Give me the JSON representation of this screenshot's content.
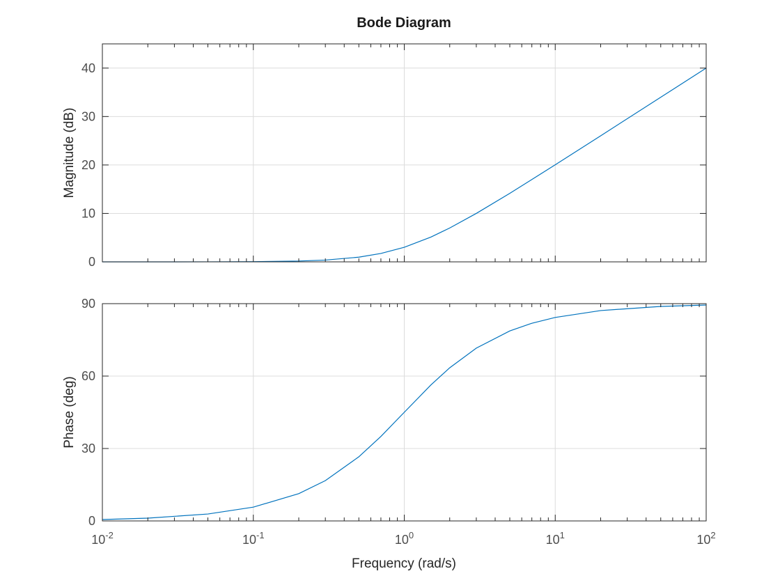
{
  "chart_data": {
    "type": "line",
    "title": "Bode Diagram",
    "xlabel": "Frequency (rad/s)",
    "xscale": "log",
    "xlim": [
      0.01,
      100
    ],
    "x_tick_labels": [
      {
        "base": "10",
        "exp": "-2"
      },
      {
        "base": "10",
        "exp": "-1"
      },
      {
        "base": "10",
        "exp": "0"
      },
      {
        "base": "10",
        "exp": "1"
      },
      {
        "base": "10",
        "exp": "2"
      }
    ],
    "grid": true,
    "line_color": "#0072BD",
    "subplots": [
      {
        "name": "magnitude",
        "ylabel": "Magnitude (dB)",
        "ylim": [
          0,
          45
        ],
        "yticks": [
          0,
          10,
          20,
          30,
          40
        ],
        "series": [
          {
            "x": [
              0.01,
              0.02,
              0.05,
              0.1,
              0.2,
              0.3,
              0.5,
              0.7,
              1,
              1.5,
              2,
              3,
              5,
              7,
              10,
              20,
              50,
              100
            ],
            "values": [
              0.0,
              0.0,
              0.01,
              0.04,
              0.17,
              0.37,
              0.97,
              1.73,
              3.01,
              5.12,
              6.99,
              10.0,
              14.15,
              17.0,
              20.04,
              26.03,
              33.98,
              40.0
            ]
          }
        ]
      },
      {
        "name": "phase",
        "ylabel": "Phase (deg)",
        "ylim": [
          0,
          90
        ],
        "yticks": [
          0,
          30,
          60,
          90
        ],
        "series": [
          {
            "x": [
              0.01,
              0.02,
              0.05,
              0.1,
              0.2,
              0.3,
              0.5,
              0.7,
              1,
              1.5,
              2,
              3,
              5,
              7,
              10,
              20,
              50,
              100
            ],
            "values": [
              0.57,
              1.15,
              2.86,
              5.71,
              11.31,
              16.7,
              26.57,
              34.99,
              45.0,
              56.31,
              63.43,
              71.57,
              78.69,
              81.87,
              84.29,
              87.14,
              88.85,
              89.43
            ]
          }
        ]
      }
    ]
  }
}
